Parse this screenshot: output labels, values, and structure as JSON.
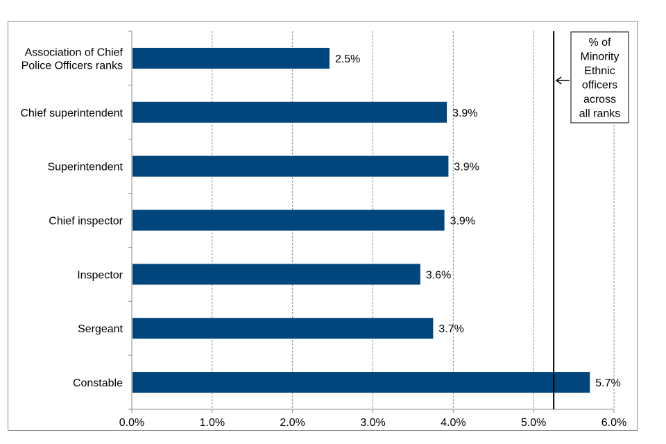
{
  "chart_data": {
    "type": "bar",
    "orientation": "horizontal",
    "categories": [
      [
        "Association of Chief",
        "Police Officers ranks"
      ],
      [
        "Chief superintendent"
      ],
      [
        "Superintendent"
      ],
      [
        "Chief inspector"
      ],
      [
        "Inspector"
      ],
      [
        "Sergeant"
      ],
      [
        "Constable"
      ]
    ],
    "values": [
      2.46,
      3.92,
      3.94,
      3.89,
      3.59,
      3.75,
      5.7
    ],
    "data_labels": [
      "2.5%",
      "3.9%",
      "3.9%",
      "3.9%",
      "3.6%",
      "3.7%",
      "5.7%"
    ],
    "xlim": [
      0,
      6
    ],
    "x_ticks": [
      0,
      1,
      2,
      3,
      4,
      5,
      6
    ],
    "x_tick_labels": [
      "0.0%",
      "1.0%",
      "2.0%",
      "3.0%",
      "4.0%",
      "5.0%",
      "6.0%"
    ],
    "grid": "vertical dashed",
    "bar_color": "#00457c",
    "reference_line": {
      "value": 5.25,
      "label_lines": [
        "% of",
        "Minority",
        "Ethnic",
        "officers",
        "across",
        "all ranks"
      ]
    },
    "title": "",
    "xlabel": "",
    "ylabel": ""
  }
}
